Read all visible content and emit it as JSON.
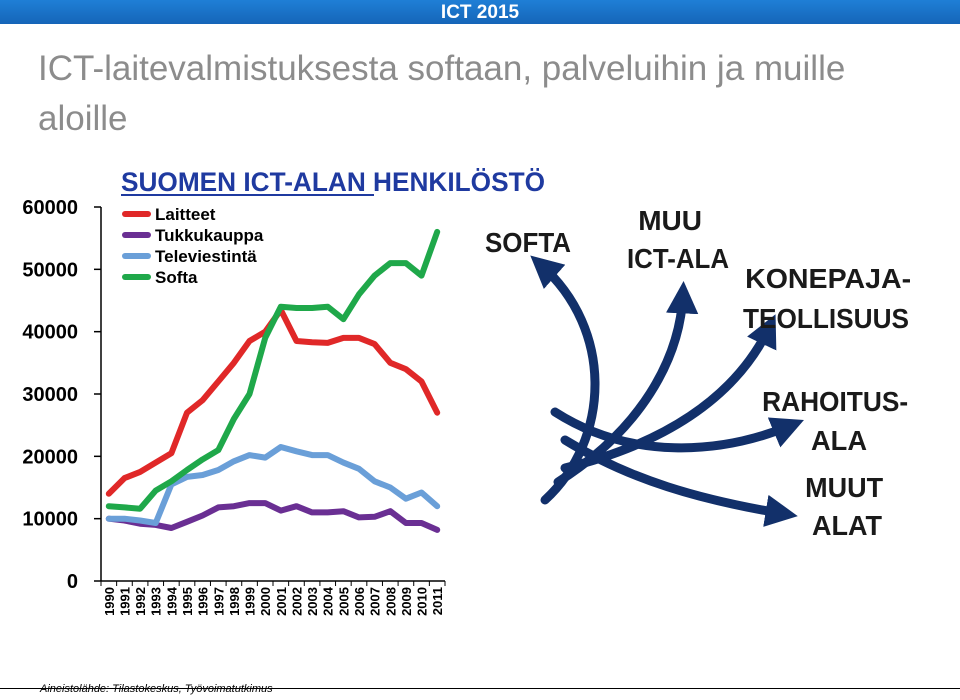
{
  "header": {
    "badge": "ICT 2015"
  },
  "slide": {
    "title": "ICT-laitevalmistuksesta softaan, palveluihin ja muille aloille",
    "source": "Aineistolähde: Tilastokeskus, Työvoimatutkimus"
  },
  "colors": {
    "topbar": "#1565b8",
    "title_gray": "#8c8c8c",
    "chart_title_blue": "#1f3aa0",
    "arrow_navy": "#12306a"
  },
  "chart_data": {
    "type": "line",
    "title": "SUOMEN ICT-ALAN HENKILÖSTÖ",
    "xlabel": "",
    "ylabel": "",
    "ylim": [
      0,
      60000
    ],
    "yticks": [
      0,
      10000,
      20000,
      30000,
      40000,
      50000,
      60000
    ],
    "ytick_labels": [
      "0",
      "10000",
      "20000",
      "30000",
      "40000",
      "50000",
      "60000"
    ],
    "grid": false,
    "legend": "top-left",
    "x": [
      "1990",
      "1991",
      "1992",
      "1993",
      "1994",
      "1995",
      "1996",
      "1997",
      "1998",
      "1999",
      "2000",
      "2001",
      "2002",
      "2003",
      "2004",
      "2005",
      "2006",
      "2007",
      "2008",
      "2009",
      "2010",
      "2011"
    ],
    "series": [
      {
        "name": "Laitteet",
        "color": "#e02828",
        "values": [
          14000,
          16500,
          17500,
          19000,
          20500,
          27000,
          29000,
          32000,
          35000,
          38500,
          40000,
          43500,
          38500,
          38300,
          38200,
          39000,
          39000,
          38000,
          35000,
          34000,
          32000,
          27000
        ]
      },
      {
        "name": "Tukkukauppa",
        "color": "#6a2f93",
        "values": [
          10000,
          9700,
          9200,
          9000,
          8500,
          9500,
          10500,
          11800,
          12000,
          12500,
          12500,
          11300,
          12000,
          11000,
          11000,
          11200,
          10200,
          10300,
          11200,
          9300,
          9300,
          8200
        ]
      },
      {
        "name": "Televiestintä",
        "color": "#6a9fd8",
        "values": [
          10000,
          10000,
          9700,
          9300,
          15500,
          16700,
          17000,
          17800,
          19200,
          20200,
          19800,
          21500,
          20800,
          20200,
          20200,
          19000,
          18000,
          16000,
          15000,
          13200,
          14200,
          12000
        ]
      },
      {
        "name": "Softa",
        "color": "#1fa84a",
        "values": [
          12000,
          11800,
          11600,
          14500,
          16000,
          17800,
          19500,
          21000,
          26000,
          30000,
          39000,
          44000,
          43800,
          43800,
          44000,
          42000,
          46000,
          49000,
          51000,
          51000,
          49000,
          56000
        ]
      }
    ],
    "annotations": [
      "SOFTA",
      "MUU ICT-ALA",
      "KONEPAJA-TEOLLISUUS",
      "RAHOITUS-ALA",
      "MUUT ALAT"
    ]
  }
}
